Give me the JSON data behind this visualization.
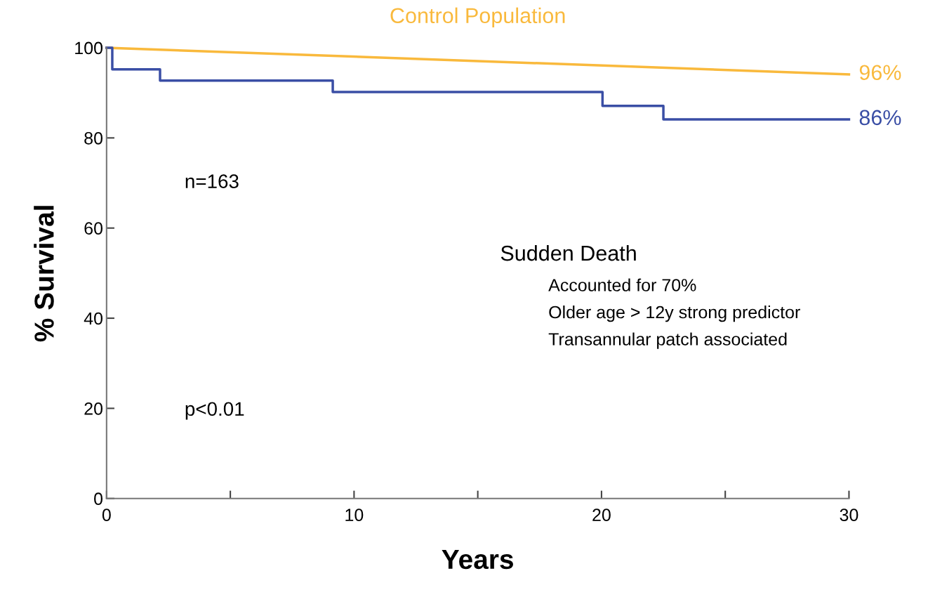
{
  "chart_data": {
    "type": "step",
    "xlabel": "Years",
    "ylabel": "% Survival",
    "series": [
      {
        "name": "Control Population",
        "type": "line",
        "color": "#f9b93c",
        "x": [
          0,
          30
        ],
        "values": [
          100,
          94.1
        ]
      },
      {
        "color": "#3a4ea5",
        "x": [
          0,
          0.23,
          2.16,
          9.14,
          20.04,
          22.5,
          30
        ],
        "values": [
          100,
          95.2,
          92.7,
          90.2,
          87.1,
          84.1,
          84.1
        ]
      }
    ],
    "annotations": [
      "96%",
      "86%",
      "n=163",
      "p<0.01",
      "Sudden Death",
      "Accounted for 70%",
      "Older age > 12y strong predictor",
      "Transannular patch associated"
    ],
    "xlim": [
      0,
      30
    ],
    "ylim": [
      0,
      100
    ],
    "xticks": [
      0,
      {
        "value": 5,
        "label": null
      },
      10,
      {
        "value": 15,
        "label": null
      },
      20,
      {
        "value": 25,
        "label": null
      },
      30
    ],
    "yticks": [
      0,
      20,
      40,
      60,
      80,
      100
    ],
    "grid": false,
    "legend": false
  }
}
